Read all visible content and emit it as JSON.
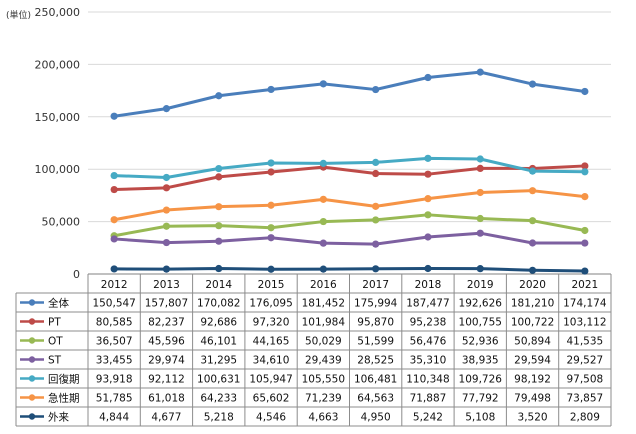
{
  "chart_data": {
    "type": "line",
    "unit_label": "(単位)",
    "x": [
      "2012",
      "2013",
      "2014",
      "2015",
      "2016",
      "2017",
      "2018",
      "2019",
      "2020",
      "2021"
    ],
    "ylim": [
      0,
      250000
    ],
    "ytick_values": [
      0,
      50000,
      100000,
      150000,
      200000,
      250000
    ],
    "ytick_labels": [
      "0",
      "50,000",
      "100,000",
      "150,000",
      "200,000",
      "250,000"
    ],
    "grid": true,
    "legend_placement": "data-table",
    "series": [
      {
        "name": "全体",
        "color": "#4a7ebb",
        "values": [
          150547,
          157807,
          170082,
          176095,
          181452,
          175994,
          187477,
          192626,
          181210,
          174174
        ],
        "labels": [
          "150,547",
          "157,807",
          "170,082",
          "176,095",
          "181,452",
          "175,994",
          "187,477",
          "192,626",
          "181,210",
          "174,174"
        ]
      },
      {
        "name": "PT",
        "color": "#be4b48",
        "values": [
          80585,
          82237,
          92686,
          97320,
          101984,
          95870,
          95238,
          100755,
          100722,
          103112
        ],
        "labels": [
          "80,585",
          "82,237",
          "92,686",
          "97,320",
          "101,984",
          "95,870",
          "95,238",
          "100,755",
          "100,722",
          "103,112"
        ]
      },
      {
        "name": "OT",
        "color": "#98b954",
        "values": [
          36507,
          45596,
          46101,
          44165,
          50029,
          51599,
          56476,
          52936,
          50894,
          41535
        ],
        "labels": [
          "36,507",
          "45,596",
          "46,101",
          "44,165",
          "50,029",
          "51,599",
          "56,476",
          "52,936",
          "50,894",
          "41,535"
        ]
      },
      {
        "name": "ST",
        "color": "#7d60a0",
        "values": [
          33455,
          29974,
          31295,
          34610,
          29439,
          28525,
          35310,
          38935,
          29594,
          29527
        ],
        "labels": [
          "33,455",
          "29,974",
          "31,295",
          "34,610",
          "29,439",
          "28,525",
          "35,310",
          "38,935",
          "29,594",
          "29,527"
        ]
      },
      {
        "name": "回復期",
        "color": "#46aac4",
        "values": [
          93918,
          92112,
          100631,
          105947,
          105550,
          106481,
          110348,
          109726,
          98192,
          97508
        ],
        "labels": [
          "93,918",
          "92,112",
          "100,631",
          "105,947",
          "105,550",
          "106,481",
          "110,348",
          "109,726",
          "98,192",
          "97,508"
        ]
      },
      {
        "name": "急性期",
        "color": "#f69446",
        "values": [
          51785,
          61018,
          64233,
          65602,
          71239,
          64563,
          71887,
          77792,
          79498,
          73857
        ],
        "labels": [
          "51,785",
          "61,018",
          "64,233",
          "65,602",
          "71,239",
          "64,563",
          "71,887",
          "77,792",
          "79,498",
          "73,857"
        ]
      },
      {
        "name": "外来",
        "color": "#1f4e79",
        "values": [
          4844,
          4677,
          5218,
          4546,
          4663,
          4950,
          5242,
          5108,
          3520,
          2809
        ],
        "labels": [
          "4,844",
          "4,677",
          "5,218",
          "4,546",
          "4,663",
          "4,950",
          "5,242",
          "5,108",
          "3,520",
          "2,809"
        ]
      }
    ]
  }
}
